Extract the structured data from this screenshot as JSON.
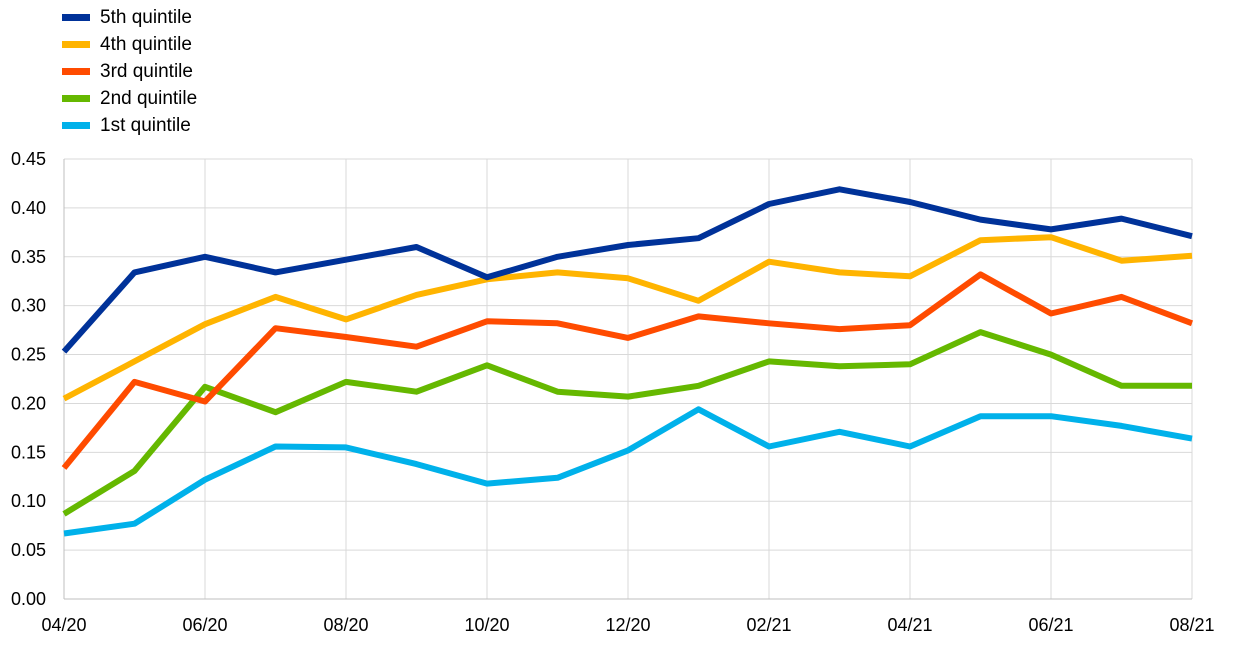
{
  "chart_data": {
    "type": "line",
    "x": [
      "04/20",
      "05/20",
      "06/20",
      "07/20",
      "08/20",
      "09/20",
      "10/20",
      "11/20",
      "12/20",
      "01/21",
      "02/21",
      "03/21",
      "04/21",
      "05/21",
      "06/21",
      "07/21",
      "08/21"
    ],
    "x_tick_labels": [
      "04/20",
      "06/20",
      "08/20",
      "10/20",
      "12/20",
      "02/21",
      "04/21",
      "06/21",
      "08/21"
    ],
    "ylim": [
      0,
      0.45
    ],
    "y_ticks": [
      "0.00",
      "0.05",
      "0.10",
      "0.15",
      "0.20",
      "0.25",
      "0.30",
      "0.35",
      "0.40",
      "0.45"
    ],
    "grid": true,
    "legend_position": "top-left",
    "series": [
      {
        "name": "5th quintile",
        "color": "#003299",
        "values": [
          0.253,
          0.334,
          0.35,
          0.334,
          0.347,
          0.36,
          0.329,
          0.35,
          0.362,
          0.369,
          0.404,
          0.419,
          0.406,
          0.388,
          0.378,
          0.389,
          0.371
        ]
      },
      {
        "name": "4th quintile",
        "color": "#FFB400",
        "values": [
          0.205,
          0.243,
          0.281,
          0.309,
          0.286,
          0.311,
          0.327,
          0.334,
          0.328,
          0.305,
          0.345,
          0.334,
          0.33,
          0.367,
          0.37,
          0.346,
          0.351
        ]
      },
      {
        "name": "3rd quintile",
        "color": "#FF4B00",
        "values": [
          0.134,
          0.222,
          0.202,
          0.277,
          0.268,
          0.258,
          0.284,
          0.282,
          0.267,
          0.289,
          0.282,
          0.276,
          0.28,
          0.332,
          0.292,
          0.309,
          0.282
        ]
      },
      {
        "name": "2nd quintile",
        "color": "#65B800",
        "values": [
          0.087,
          0.131,
          0.217,
          0.191,
          0.222,
          0.212,
          0.239,
          0.212,
          0.207,
          0.218,
          0.243,
          0.238,
          0.24,
          0.273,
          0.25,
          0.218,
          0.218
        ]
      },
      {
        "name": "1st quintile",
        "color": "#00B1EA",
        "values": [
          0.067,
          0.077,
          0.122,
          0.156,
          0.155,
          0.138,
          0.118,
          0.124,
          0.152,
          0.194,
          0.156,
          0.171,
          0.156,
          0.187,
          0.187,
          0.177,
          0.164
        ]
      }
    ]
  }
}
